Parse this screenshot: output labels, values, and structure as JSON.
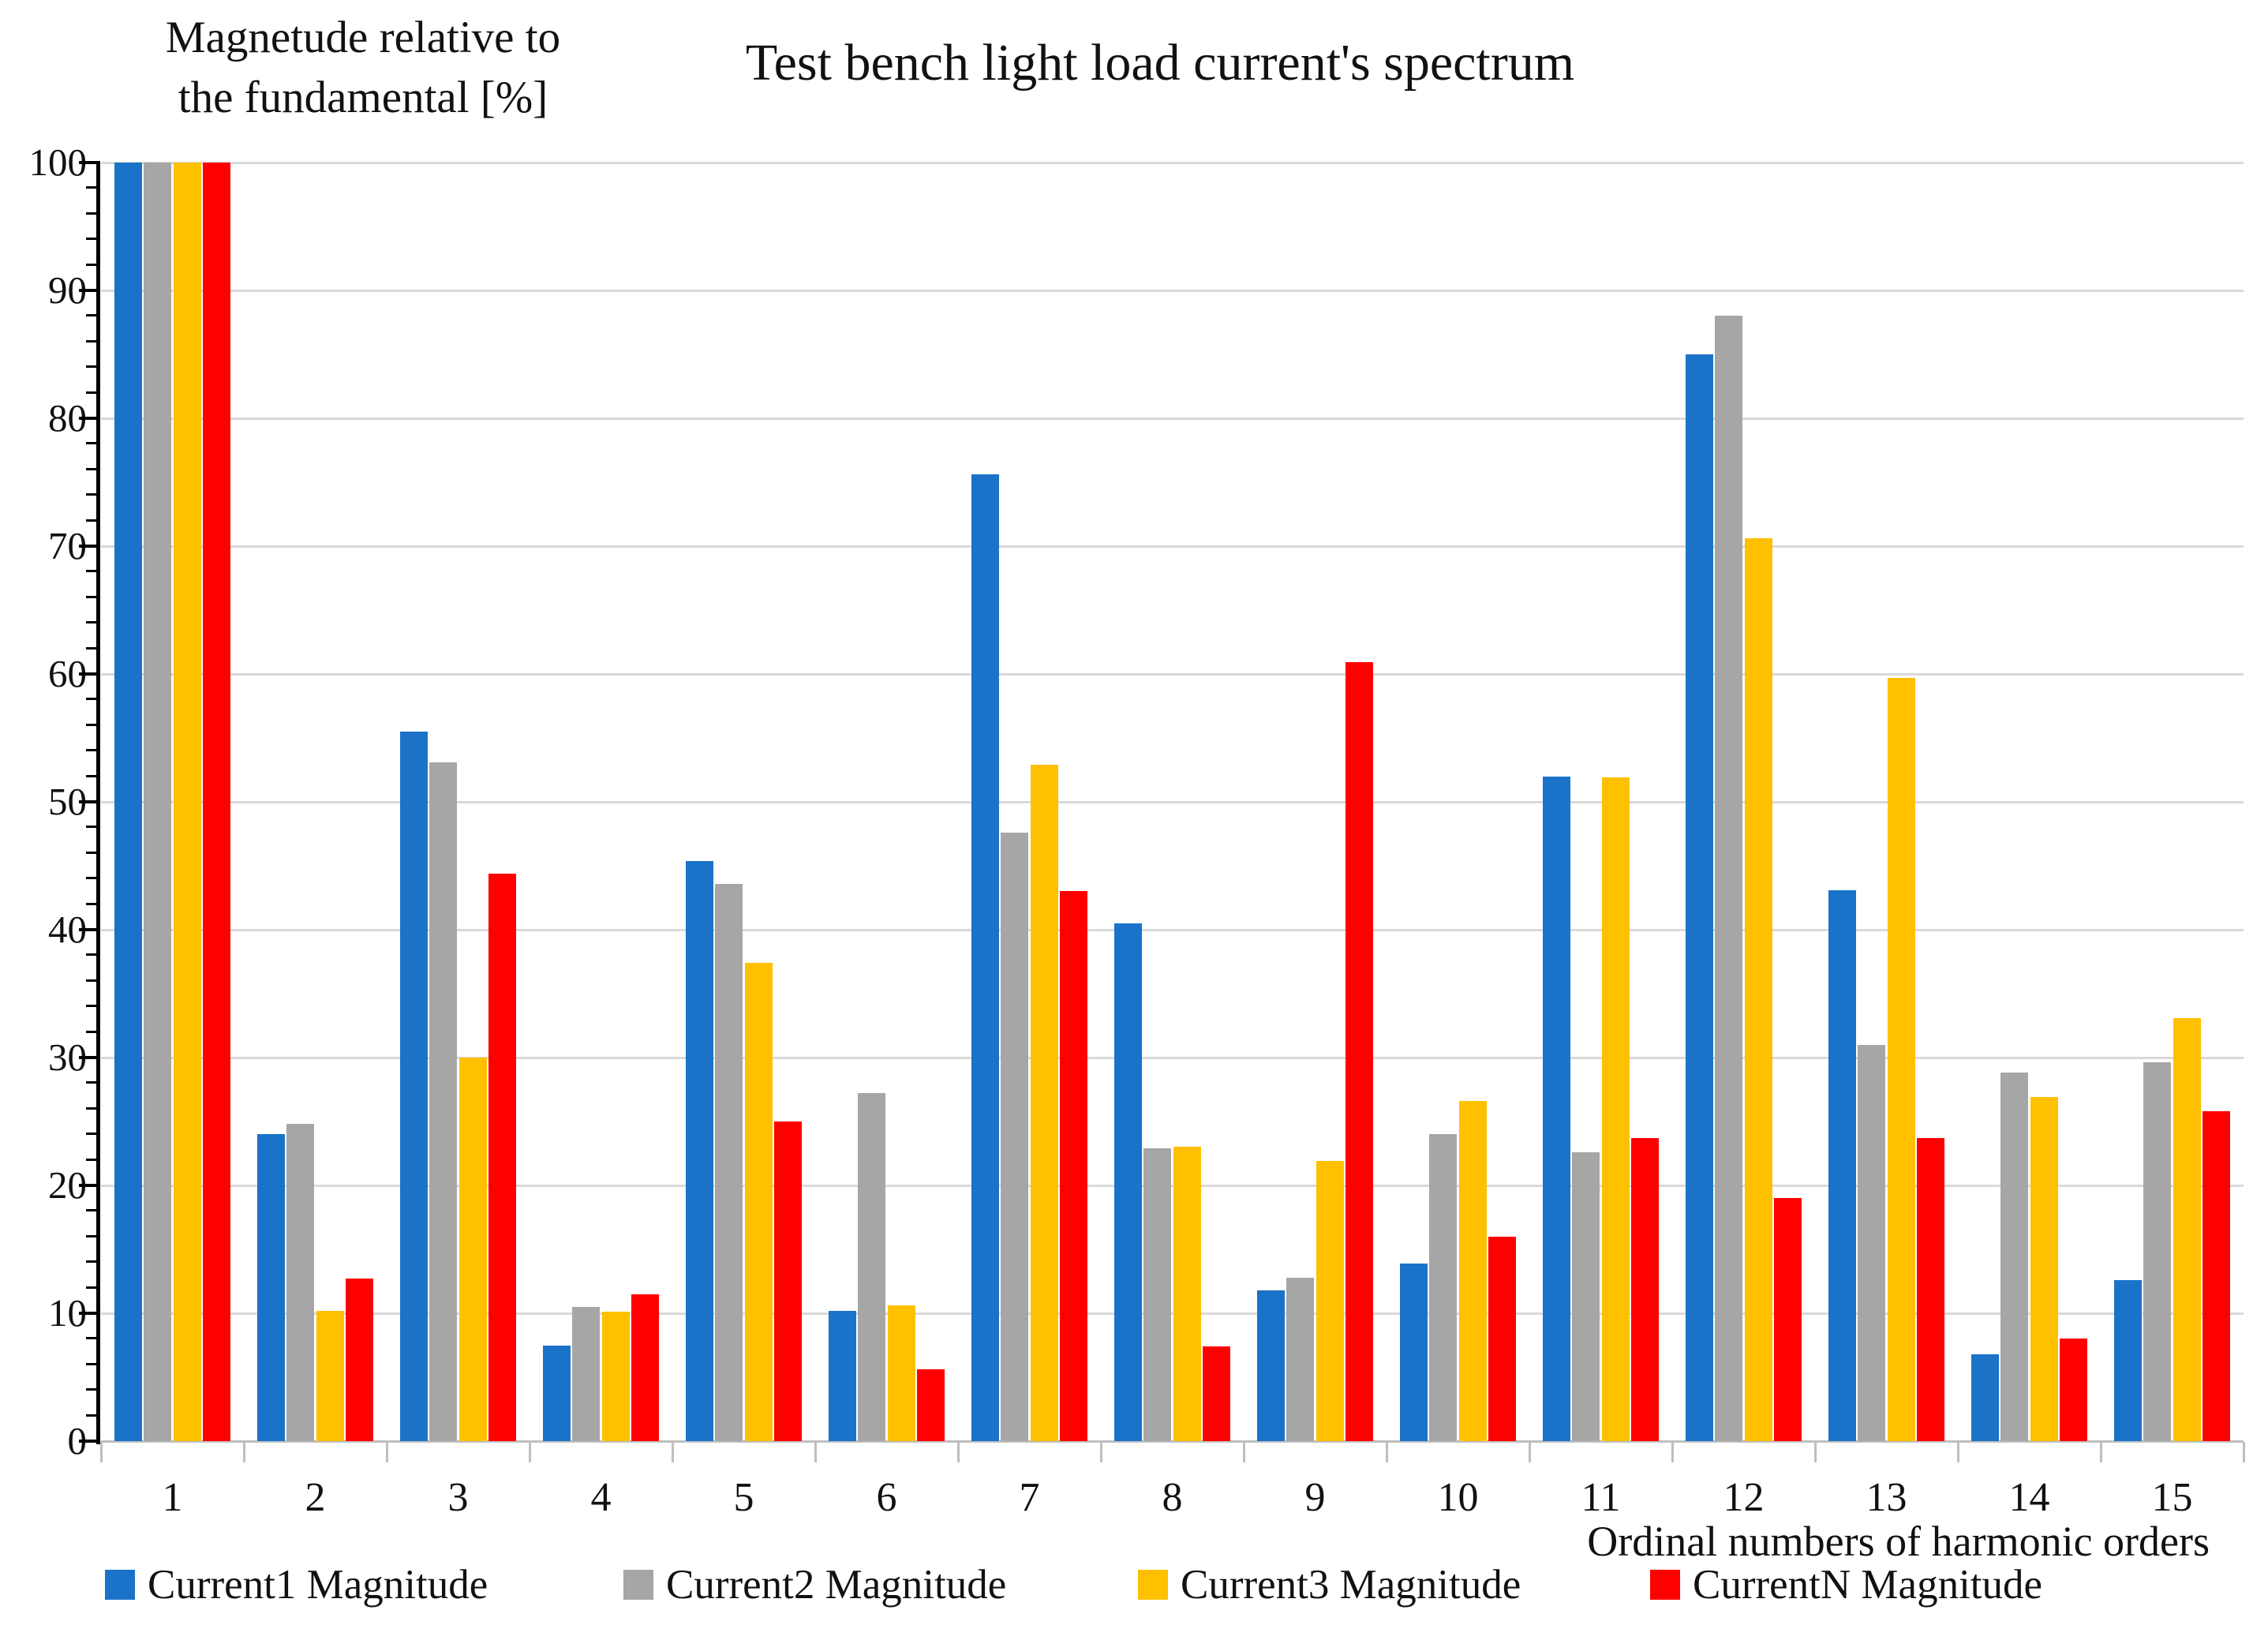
{
  "title": "Test bench light load current's spectrum",
  "y_axis_title_line1": "Magnetude relative to",
  "y_axis_title_line2": "the fundamental [%]",
  "x_axis_title": "Ordinal numbers of harmonic orders",
  "y_tick_labels": [
    "0",
    "10",
    "20",
    "30",
    "40",
    "50",
    "60",
    "70",
    "80",
    "90",
    "100"
  ],
  "colors": {
    "series_blue": "#1a73c8",
    "series_gray": "#a6a6a6",
    "series_yellow": "#ffc000",
    "series_red": "#ff0000",
    "gridline": "#d9d9d9",
    "axis_line": "#000000",
    "x_tick": "#bfbfbf"
  },
  "chart_data": {
    "type": "bar",
    "title": "Test bench light load current's spectrum",
    "xlabel": "Ordinal numbers of harmonic orders",
    "ylabel": "Magnetude relative to the fundamental [%]",
    "ylim": [
      0,
      100
    ],
    "ytick_step": 10,
    "grid": true,
    "legend_position": "bottom",
    "categories": [
      "1",
      "2",
      "3",
      "4",
      "5",
      "6",
      "7",
      "8",
      "9",
      "10",
      "11",
      "12",
      "13",
      "14",
      "15"
    ],
    "series": [
      {
        "name": "Current1 Magnitude",
        "color": "#1a73c8",
        "values": [
          100,
          24,
          55.5,
          7.5,
          45.4,
          10.2,
          75.6,
          40.5,
          11.8,
          13.9,
          52,
          85,
          43.1,
          6.8,
          12.6
        ]
      },
      {
        "name": "Current2 Magnitude",
        "color": "#a6a6a6",
        "values": [
          100,
          24.8,
          53.1,
          10.5,
          43.6,
          27.2,
          47.6,
          22.9,
          12.8,
          24,
          22.6,
          88,
          31,
          28.8,
          29.6
        ]
      },
      {
        "name": "Current3 Magnitude",
        "color": "#ffc000",
        "values": [
          100,
          10.2,
          30,
          10.1,
          37.4,
          10.6,
          52.9,
          23,
          21.9,
          26.6,
          51.9,
          70.6,
          59.7,
          26.9,
          33.1
        ]
      },
      {
        "name": "CurrentN Magnitude",
        "color": "#ff0000",
        "values": [
          100,
          12.7,
          44.4,
          11.5,
          25,
          5.6,
          43,
          7.4,
          60.9,
          16,
          23.7,
          19,
          23.7,
          8,
          25.8
        ]
      }
    ]
  }
}
